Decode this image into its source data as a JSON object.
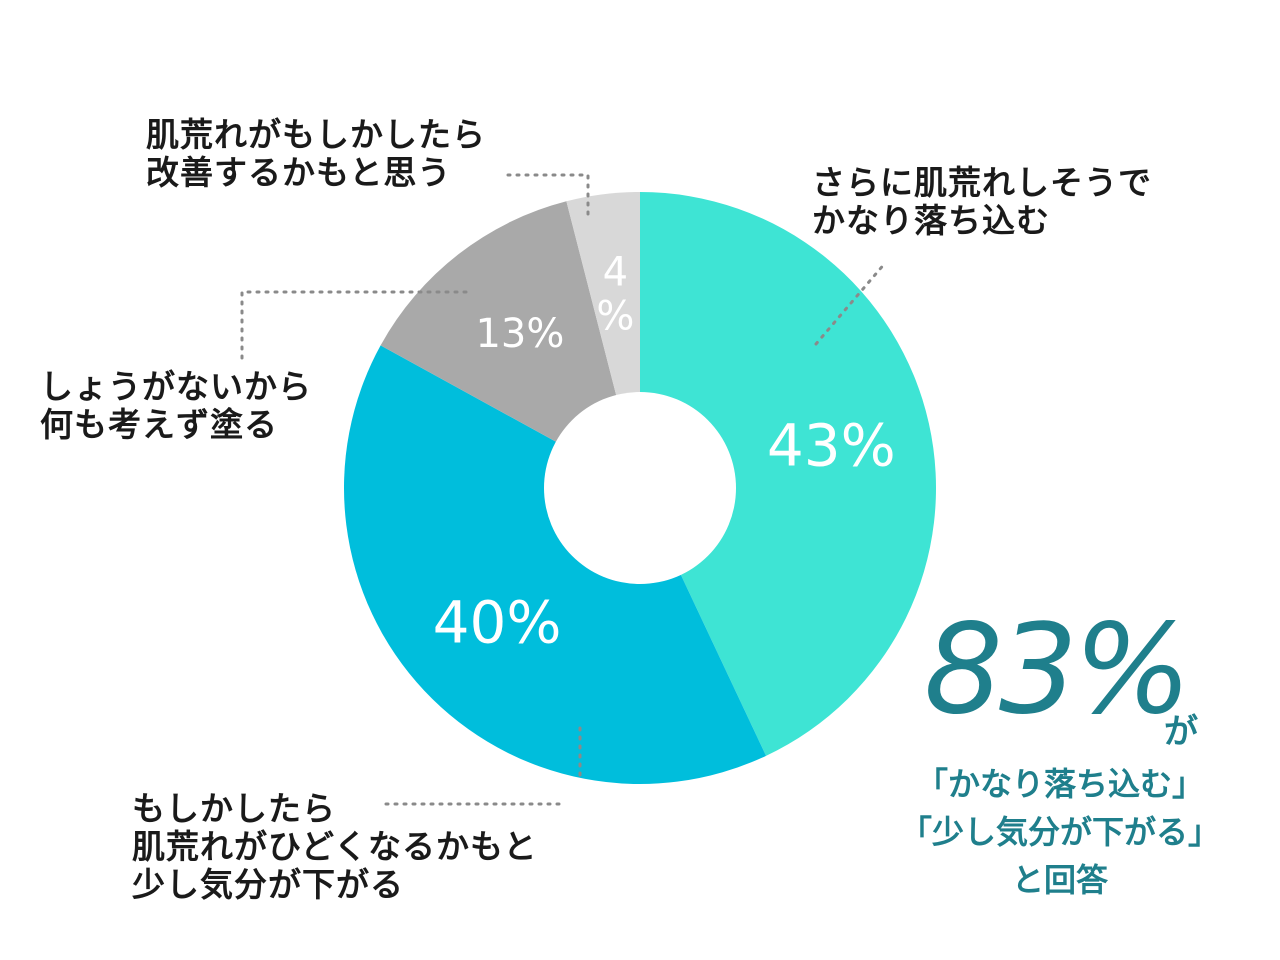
{
  "chart_data": {
    "type": "pie",
    "variant": "donut",
    "categories": [
      "さらに肌荒れしそうでかなり落ち込む",
      "もしかしたら肌荒れがひどくなるかもと少し気分が下がる",
      "しょうがないから何も考えず塗る",
      "肌荒れがもしかしたら改善するかもと思う"
    ],
    "values": [
      43,
      40,
      13,
      4
    ],
    "value_labels": [
      "43%",
      "40%",
      "13%",
      "4\n%"
    ],
    "colors": [
      "#3ee4d4",
      "#00bedc",
      "#a9a9a9",
      "#d8d8d8"
    ],
    "legend": "none",
    "annotations": [
      "83%",
      "が",
      "「かなり落ち込む」",
      "「少し気分が下がる」",
      "と回答"
    ]
  },
  "labels": {
    "s0": [
      "さらに肌荒れしそうで",
      "かなり落ち込む"
    ],
    "s1": [
      "もしかしたら",
      "肌荒れがひどくなるかもと",
      "少し気分が下がる"
    ],
    "s2": [
      "しょうがないから",
      "何も考えず塗る"
    ],
    "s3": [
      "肌荒れがもしかしたら",
      "改善するかもと思う"
    ]
  },
  "summary": {
    "big": "83%",
    "suffix": "が",
    "lines": [
      "「かなり落ち込む」",
      "「少し気分が下がる」",
      "と回答"
    ]
  }
}
